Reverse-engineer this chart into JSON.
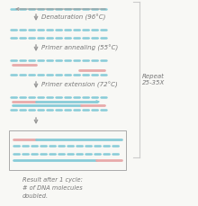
{
  "bg_color": "#f8f8f5",
  "dna_color_blue": "#88ccd8",
  "dna_color_red": "#e8aaaa",
  "arrow_color": "#999999",
  "text_color": "#777777",
  "box_color": "#bbbbbb",
  "steps": [
    "Denaturation (96°C)",
    "Primer annealing (55°C)",
    "Primer extension (72°C)"
  ],
  "repeat_label": "Repeat\n25-35X",
  "result_label": "Result after 1 cycle:\n# of DNA molecules\ndoubled."
}
